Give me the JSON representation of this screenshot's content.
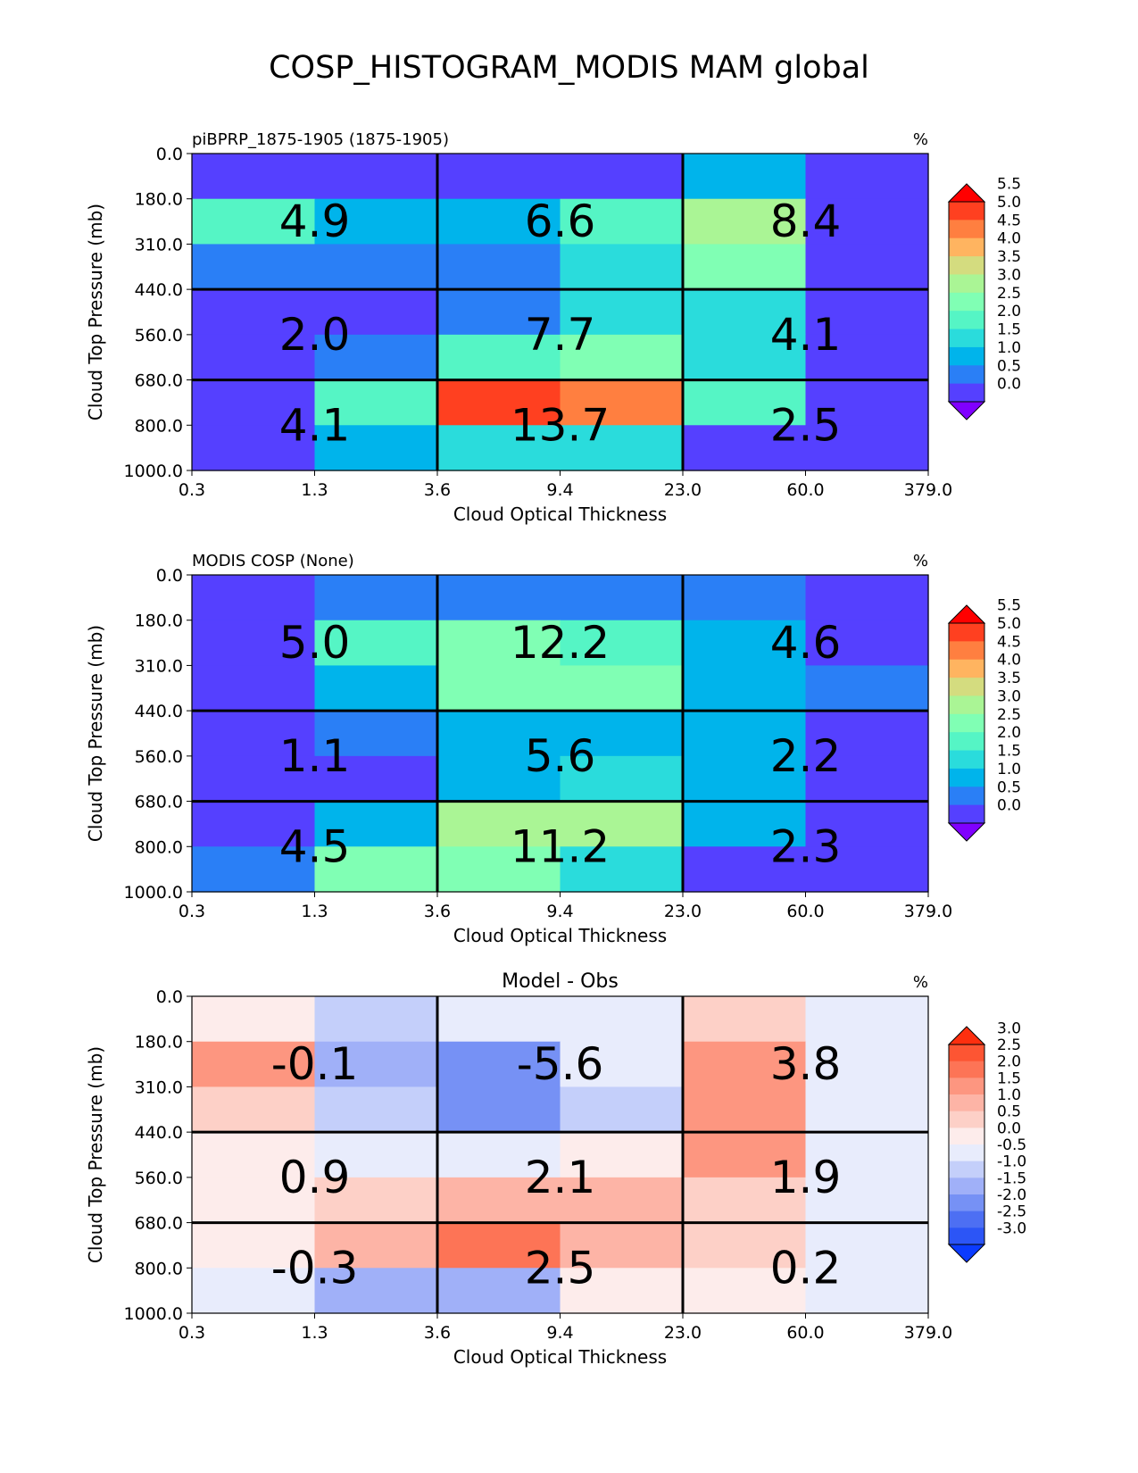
{
  "title": "COSP_HISTOGRAM_MODIS MAM global",
  "colorscale_main": {
    "levels": [
      "0.0",
      "0.5",
      "1.0",
      "1.5",
      "2.0",
      "2.5",
      "3.0",
      "3.5",
      "4.0",
      "4.5",
      "5.0",
      "5.5"
    ],
    "colors": [
      "#8000ff",
      "#5540ff",
      "#2a7ff6",
      "#00b4eb",
      "#2adcdc",
      "#55f5c5",
      "#80ffb4",
      "#aaf595",
      "#d4dc7f",
      "#ffb460",
      "#ff7f40",
      "#ff4020",
      "#ff0000"
    ]
  },
  "colorscale_diff": {
    "levels": [
      "-3.0",
      "-2.5",
      "-2.0",
      "-1.5",
      "-1.0",
      "-0.5",
      "0.0",
      "0.5",
      "1.0",
      "1.5",
      "2.0",
      "2.5",
      "3.0"
    ],
    "colors": [
      "#0b3bff",
      "#2c55f6",
      "#4d6ff3",
      "#7691f5",
      "#a0b0f8",
      "#c4cffa",
      "#e8ecfc",
      "#fdeceb",
      "#fdd0c7",
      "#fdb4a6",
      "#fd9680",
      "#fd7456",
      "#fd5533",
      "#fd2f0f"
    ]
  },
  "chart_data": [
    {
      "type": "heatmap",
      "left_title": "piBPRP_1875-1905 (1875-1905)",
      "center_title": "",
      "units": "%",
      "xlabel": "Cloud Optical Thickness",
      "ylabel": "Cloud Top Pressure (mb)",
      "xticks": [
        "0.3",
        "1.3",
        "3.6",
        "9.4",
        "23.0",
        "60.0",
        "379.0"
      ],
      "yticks": [
        "0.0",
        "180.0",
        "310.0",
        "440.0",
        "560.0",
        "680.0",
        "800.0",
        "1000.0"
      ],
      "colorscale": "main",
      "cells": [
        [
          0.4,
          0.4,
          0.3,
          0.3,
          1.3,
          0.3
        ],
        [
          2.3,
          1.2,
          1.2,
          2.2,
          3.2,
          0.3
        ],
        [
          0.7,
          0.7,
          0.7,
          1.7,
          2.8,
          0.3
        ],
        [
          0.3,
          0.3,
          0.8,
          1.8,
          1.8,
          0.3
        ],
        [
          0.3,
          0.8,
          2.2,
          2.8,
          1.8,
          0.3
        ],
        [
          0.3,
          2.4,
          5.2,
          4.8,
          2.2,
          0.3
        ],
        [
          0.3,
          1.2,
          1.8,
          1.8,
          0.3,
          0.3
        ]
      ],
      "box_values": [
        [
          "4.9",
          "6.6",
          "8.4"
        ],
        [
          "2.0",
          "7.7",
          "4.1"
        ],
        [
          "4.1",
          "13.7",
          "2.5"
        ]
      ]
    },
    {
      "type": "heatmap",
      "left_title": "MODIS COSP (None)",
      "center_title": "",
      "units": "%",
      "xlabel": "Cloud Optical Thickness",
      "ylabel": "Cloud Top Pressure (mb)",
      "xticks": [
        "0.3",
        "1.3",
        "3.6",
        "9.4",
        "23.0",
        "60.0",
        "379.0"
      ],
      "yticks": [
        "0.0",
        "180.0",
        "310.0",
        "440.0",
        "560.0",
        "680.0",
        "800.0",
        "1000.0"
      ],
      "colorscale": "main",
      "cells": [
        [
          0.3,
          0.7,
          0.7,
          0.7,
          0.7,
          0.3
        ],
        [
          0.3,
          2.3,
          2.8,
          2.3,
          1.2,
          0.3
        ],
        [
          0.3,
          1.2,
          2.8,
          2.8,
          1.2,
          0.8
        ],
        [
          0.3,
          0.8,
          1.2,
          1.2,
          1.2,
          0.3
        ],
        [
          0.3,
          0.3,
          1.2,
          1.8,
          1.2,
          0.3
        ],
        [
          0.3,
          1.2,
          3.2,
          3.2,
          1.2,
          0.3
        ],
        [
          0.8,
          2.8,
          2.8,
          1.8,
          0.3,
          0.3
        ]
      ],
      "box_values": [
        [
          "5.0",
          "12.2",
          "4.6"
        ],
        [
          "1.1",
          "5.6",
          "2.2"
        ],
        [
          "4.5",
          "11.2",
          "2.3"
        ]
      ]
    },
    {
      "type": "heatmap",
      "left_title": "",
      "center_title": "Model - Obs",
      "units": "%",
      "xlabel": "Cloud Optical Thickness",
      "ylabel": "Cloud Top Pressure (mb)",
      "xticks": [
        "0.3",
        "1.3",
        "3.6",
        "9.4",
        "23.0",
        "60.0",
        "379.0"
      ],
      "yticks": [
        "0.0",
        "180.0",
        "310.0",
        "440.0",
        "560.0",
        "680.0",
        "800.0",
        "1000.0"
      ],
      "colorscale": "diff",
      "cells": [
        [
          0.2,
          -0.7,
          -0.2,
          -0.2,
          0.7,
          -0.2
        ],
        [
          1.7,
          -1.2,
          -1.7,
          -0.2,
          1.8,
          -0.2
        ],
        [
          0.7,
          -0.7,
          -1.7,
          -0.7,
          1.8,
          -0.2
        ],
        [
          0.2,
          -0.2,
          -0.2,
          0.2,
          1.7,
          -0.2
        ],
        [
          0.2,
          0.7,
          1.2,
          1.2,
          0.7,
          -0.2
        ],
        [
          0.2,
          1.2,
          2.2,
          1.2,
          0.7,
          -0.2
        ],
        [
          -0.2,
          -1.2,
          -1.2,
          0.2,
          0.2,
          -0.2
        ]
      ],
      "box_values": [
        [
          "-0.1",
          "-5.6",
          "3.8"
        ],
        [
          "0.9",
          "2.1",
          "1.9"
        ],
        [
          "-0.3",
          "2.5",
          "0.2"
        ]
      ]
    }
  ]
}
